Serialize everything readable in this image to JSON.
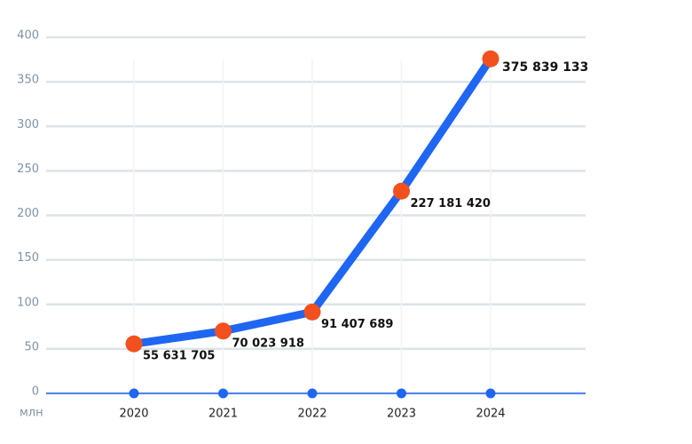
{
  "chart_data": {
    "type": "line",
    "y_unit_label": "млн",
    "categories": [
      "2020",
      "2021",
      "2022",
      "2023",
      "2024"
    ],
    "series": [
      {
        "color": "#1f66f2",
        "marker_color": "#f2501e",
        "values": [
          55.631705,
          70.023918,
          91.407689,
          227.18142,
          375.839133
        ],
        "value_labels": [
          "55 631 705",
          "70 023 918",
          "91 407 689",
          "227 181 420",
          "375 839 133"
        ]
      }
    ],
    "ylim": [
      0,
      400
    ],
    "yticks": [
      0,
      50,
      100,
      150,
      200,
      250,
      300,
      350,
      400
    ],
    "grid": true
  }
}
